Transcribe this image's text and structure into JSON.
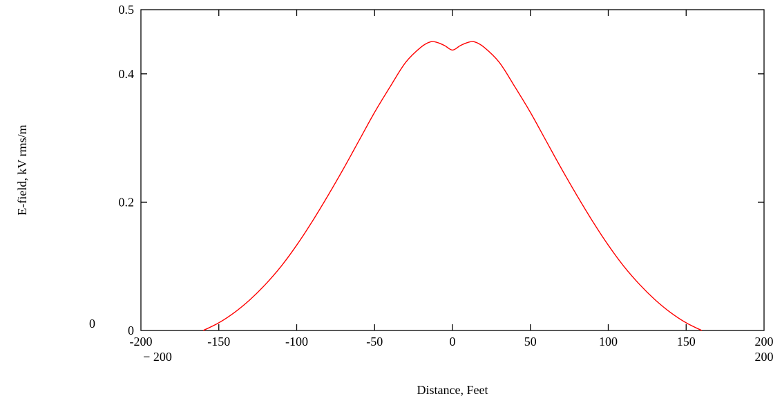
{
  "chart_data": {
    "type": "line",
    "title": "",
    "xlabel": "Distance, Feet",
    "ylabel": "E-field, kV rms/m",
    "xlim": [
      -200,
      200
    ],
    "ylim": [
      0,
      0.5
    ],
    "x_ticks": [
      -200,
      -150,
      -100,
      -50,
      0,
      50,
      100,
      150,
      200
    ],
    "x_tick_labels": [
      "-200",
      "-150",
      "-100",
      "-50",
      "0",
      "50",
      "100",
      "150",
      "200"
    ],
    "y_ticks": [
      0,
      0.2,
      0.4,
      0.5
    ],
    "y_tick_labels": [
      "0",
      "0.2",
      "0.4",
      "0.5"
    ],
    "range_labels": {
      "x_min": "− 200",
      "x_max": "200",
      "y_min": "0"
    },
    "grid": false,
    "legend": "none",
    "series": [
      {
        "color": "#ff0000",
        "x": [
          -160,
          -150,
          -140,
          -130,
          -120,
          -110,
          -100,
          -90,
          -80,
          -70,
          -60,
          -50,
          -40,
          -30,
          -20,
          -14,
          -10,
          -5,
          0,
          5,
          10,
          14,
          20,
          30,
          40,
          50,
          60,
          70,
          80,
          90,
          100,
          110,
          120,
          130,
          140,
          150,
          160
        ],
        "y": [
          0,
          0.012,
          0.028,
          0.048,
          0.072,
          0.1,
          0.133,
          0.17,
          0.21,
          0.252,
          0.296,
          0.34,
          0.38,
          0.418,
          0.442,
          0.45,
          0.449,
          0.444,
          0.437,
          0.444,
          0.449,
          0.45,
          0.442,
          0.418,
          0.38,
          0.34,
          0.296,
          0.252,
          0.21,
          0.17,
          0.133,
          0.1,
          0.072,
          0.048,
          0.028,
          0.012,
          0
        ]
      }
    ]
  }
}
